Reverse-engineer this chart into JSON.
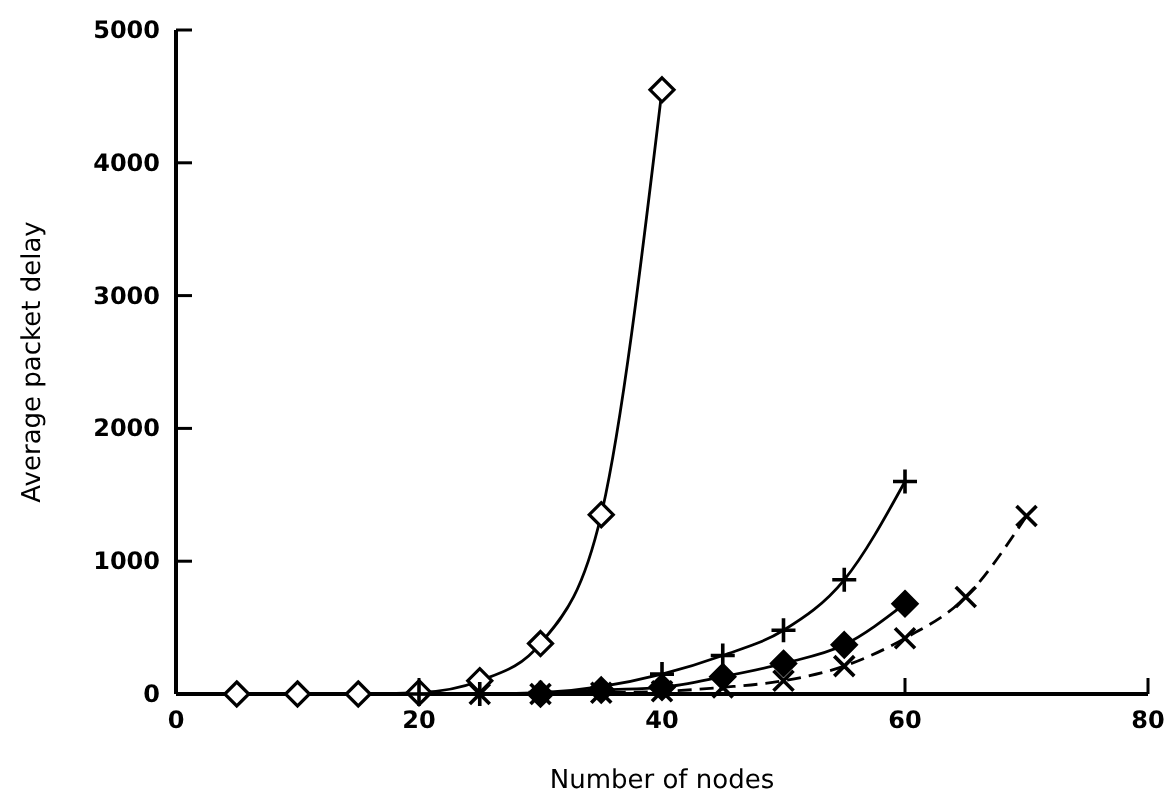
{
  "chart_data": {
    "type": "line",
    "xlabel": "Number of nodes",
    "ylabel": "Average packet delay",
    "xlim": [
      0,
      80
    ],
    "ylim": [
      0,
      5000
    ],
    "xticks": [
      0,
      20,
      40,
      60,
      80
    ],
    "yticks": [
      0,
      1000,
      2000,
      3000,
      4000,
      5000
    ],
    "grid": false,
    "series": [
      {
        "color": "#000000",
        "marker": "diamond",
        "line_style": "solid",
        "x": [
          5,
          10,
          15,
          20,
          25,
          30,
          35,
          40
        ],
        "values": [
          0,
          0,
          0,
          10,
          100,
          380,
          1350,
          4550
        ]
      },
      {
        "color": "#000000",
        "marker": "cross",
        "line_style": "solid",
        "x": [
          20,
          25,
          30,
          35,
          40,
          45,
          50,
          55,
          60
        ],
        "values": [
          0,
          0,
          10,
          null,
          150,
          290,
          480,
          860,
          1600
        ]
      },
      {
        "color": "#000000",
        "marker": "diamond",
        "line_style": "solid",
        "x": [
          30,
          35,
          40,
          45,
          50,
          55,
          60
        ],
        "values": [
          0,
          30,
          50,
          130,
          230,
          370,
          680
        ]
      },
      {
        "color": "#000000",
        "marker": "cross",
        "line_style": "dashed",
        "x": [
          25,
          30,
          35,
          40,
          45,
          50,
          55,
          60,
          65,
          70
        ],
        "values": [
          0,
          0,
          10,
          20,
          50,
          100,
          210,
          420,
          730,
          1340
        ]
      }
    ]
  }
}
